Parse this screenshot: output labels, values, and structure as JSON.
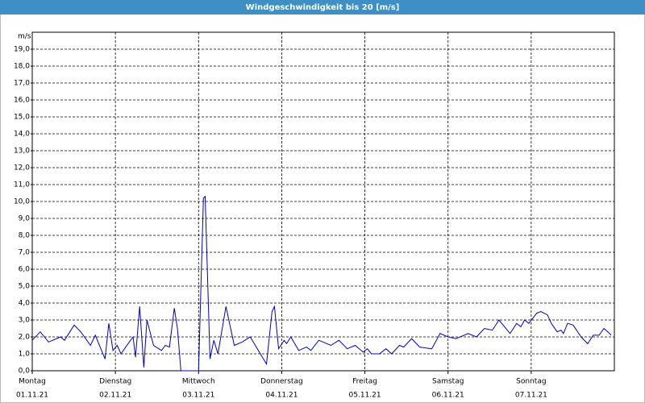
{
  "chart_data": {
    "type": "line",
    "title": "Windgeschwindigkeit bis 20 [m/s]",
    "y_unit": "m/s",
    "color": "#0000c0",
    "xlim": [
      0,
      168
    ],
    "ylim": [
      0,
      20
    ],
    "grid": true,
    "xticks": [
      {
        "value": 0,
        "label": "Montag",
        "sublabel": "01.11.21"
      },
      {
        "value": 24,
        "label": "Dienstag",
        "sublabel": "02.11.21"
      },
      {
        "value": 48,
        "label": "Mittwoch",
        "sublabel": "03.11.21"
      },
      {
        "value": 72,
        "label": "Donnerstag",
        "sublabel": "04.11.21"
      },
      {
        "value": 96,
        "label": "Freitag",
        "sublabel": "05.11.21"
      },
      {
        "value": 120,
        "label": "Samstag",
        "sublabel": "06.11.21"
      },
      {
        "value": 144,
        "label": "Sonntag",
        "sublabel": "07.11.21"
      }
    ],
    "yticks": [
      {
        "value": 0,
        "label": "0,0"
      },
      {
        "value": 1,
        "label": "1,0"
      },
      {
        "value": 2,
        "label": "2,0"
      },
      {
        "value": 3,
        "label": "3,0"
      },
      {
        "value": 4,
        "label": "4,0"
      },
      {
        "value": 5,
        "label": "5,0"
      },
      {
        "value": 6,
        "label": "6,0"
      },
      {
        "value": 7,
        "label": "7,0"
      },
      {
        "value": 8,
        "label": "8,0"
      },
      {
        "value": 9,
        "label": "9,0"
      },
      {
        "value": 10,
        "label": "10,0"
      },
      {
        "value": 11,
        "label": "11,0"
      },
      {
        "value": 12,
        "label": "12,0"
      },
      {
        "value": 13,
        "label": "13,0"
      },
      {
        "value": 14,
        "label": "14,0"
      },
      {
        "value": 15,
        "label": "15,0"
      },
      {
        "value": 16,
        "label": "16,0"
      },
      {
        "value": 17,
        "label": "17,0"
      },
      {
        "value": 18,
        "label": "18,0"
      },
      {
        "value": 19,
        "label": "19,0"
      }
    ],
    "x": [
      0,
      2.3,
      4.7,
      8.2,
      9.3,
      12.1,
      14.0,
      16.8,
      18.2,
      21.0,
      22.1,
      23.3,
      24.5,
      25.6,
      28.0,
      29.1,
      29.8,
      31.0,
      32.2,
      33.1,
      35.0,
      37.3,
      38.4,
      39.6,
      41.0,
      41.9,
      42.9,
      48.0,
      49.4,
      49.9,
      51.3,
      52.4,
      53.6,
      55.9,
      58.3,
      60.6,
      62.9,
      67.6,
      69.2,
      69.9,
      71.1,
      72.7,
      73.4,
      74.6,
      76.9,
      79.2,
      80.4,
      82.7,
      86.2,
      88.5,
      90.9,
      93.2,
      95.5,
      96.7,
      97.9,
      100.2,
      102.1,
      103.7,
      106.0,
      107.2,
      109.5,
      111.8,
      115.3,
      117.7,
      120.0,
      122.3,
      125.8,
      128.2,
      130.5,
      132.8,
      134.7,
      136.3,
      137.9,
      139.8,
      141.0,
      142.1,
      143.3,
      145.6,
      146.8,
      148.7,
      149.8,
      151.5,
      152.6,
      153.3,
      154.5,
      156.1,
      158.4,
      160.3,
      161.9,
      163.6,
      165.0,
      166.1,
      167.1
    ],
    "values": [
      1.8,
      2.3,
      1.7,
      2.0,
      1.8,
      2.7,
      2.3,
      1.5,
      2.1,
      0.7,
      2.8,
      1.2,
      1.5,
      1.0,
      1.7,
      2.0,
      0.8,
      3.8,
      0.2,
      3.0,
      1.5,
      1.2,
      1.5,
      1.4,
      3.7,
      2.5,
      0,
      0,
      10.2,
      10.3,
      0.7,
      1.8,
      1.0,
      3.8,
      1.5,
      1.7,
      2.0,
      0.4,
      3.5,
      3.8,
      1.3,
      1.8,
      1.6,
      2.0,
      1.2,
      1.4,
      1.2,
      1.8,
      1.5,
      1.8,
      1.3,
      1.5,
      1.1,
      1.3,
      1.0,
      1.0,
      1.3,
      1.0,
      1.5,
      1.4,
      1.9,
      1.4,
      1.3,
      2.2,
      2.0,
      1.9,
      2.2,
      2.0,
      2.5,
      2.4,
      3.0,
      2.6,
      2.2,
      2.8,
      2.6,
      3.0,
      2.8,
      3.4,
      3.5,
      3.3,
      2.8,
      2.3,
      2.4,
      2.2,
      2.8,
      2.7,
      2.0,
      1.6,
      2.1,
      2.1,
      2.5,
      2.3,
      2.1
    ]
  }
}
